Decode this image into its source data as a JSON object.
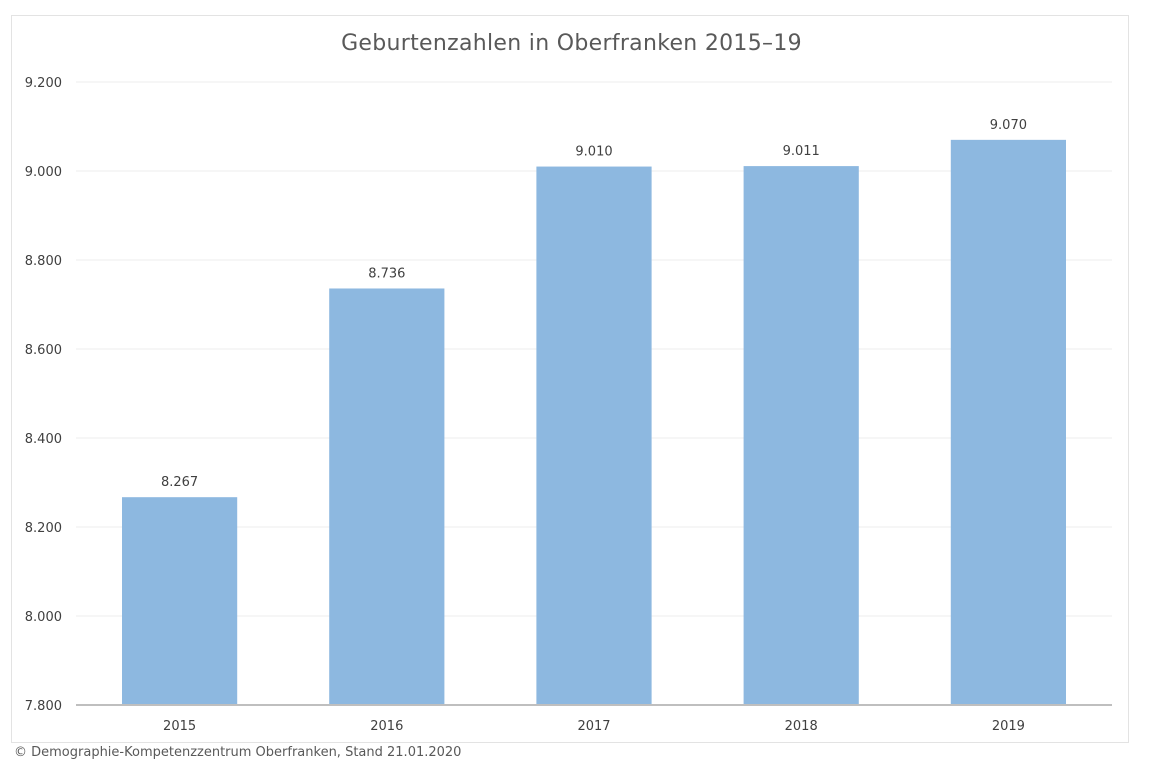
{
  "colors": {
    "bar": "#8db8e0",
    "grid": "#ececec",
    "axis": "#bfbfbf",
    "text": "#404040",
    "title": "#595959"
  },
  "chart_data": {
    "type": "bar",
    "title": "Geburtenzahlen in Oberfranken 2015–19",
    "xlabel": "",
    "ylabel": "",
    "categories": [
      "2015",
      "2016",
      "2017",
      "2018",
      "2019"
    ],
    "values": [
      8267,
      8736,
      9010,
      9011,
      9070
    ],
    "value_labels": [
      "8.267",
      "8.736",
      "9.010",
      "9.011",
      "9.070"
    ],
    "ylim": [
      7800,
      9200
    ],
    "yticks": [
      7800,
      8000,
      8200,
      8400,
      8600,
      8800,
      9000,
      9200
    ],
    "ytick_labels": [
      "7.800",
      "8.000",
      "8.200",
      "8.400",
      "8.600",
      "8.800",
      "9.000",
      "9.200"
    ],
    "grid": true,
    "legend": "none"
  },
  "footer": {
    "source": "© Demographie-Kompetenzzentrum Oberfranken, Stand 21.01.2020"
  }
}
